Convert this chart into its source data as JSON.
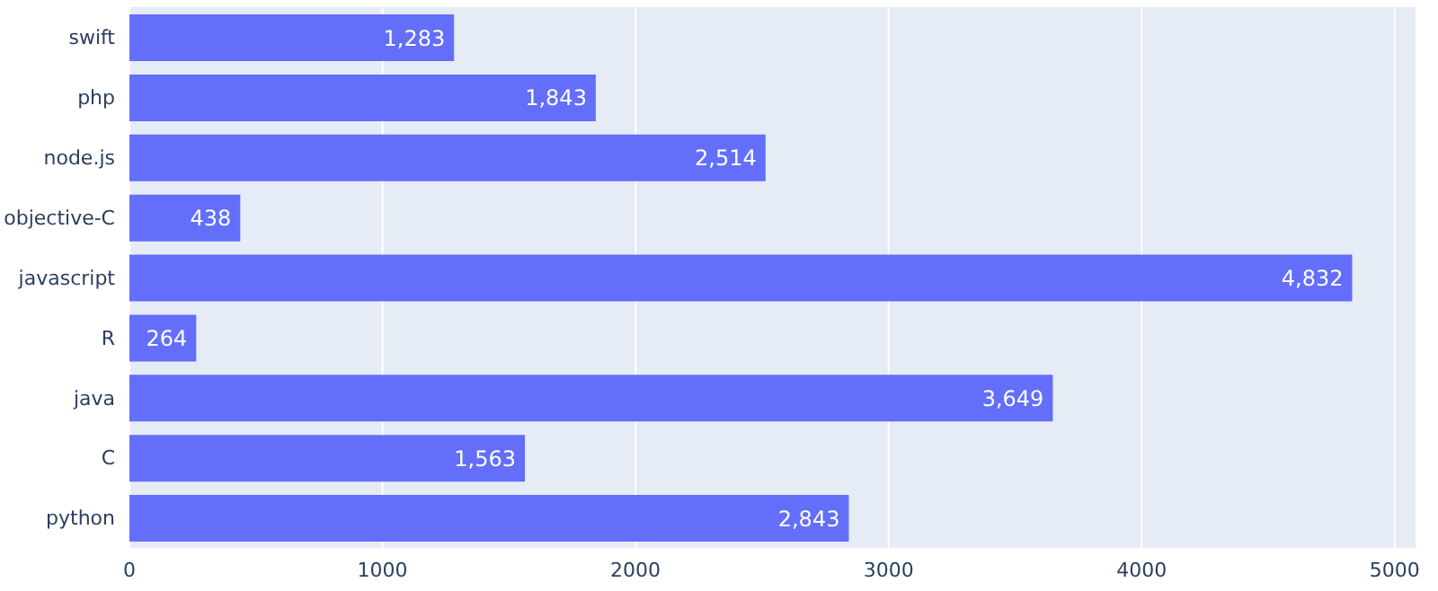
{
  "chart_data": {
    "type": "bar",
    "orientation": "horizontal",
    "categories": [
      "swift",
      "php",
      "node.js",
      "objective-C",
      "javascript",
      "R",
      "java",
      "C",
      "python"
    ],
    "values": [
      1283,
      1843,
      2514,
      438,
      4832,
      264,
      3649,
      1563,
      2843
    ],
    "value_labels": [
      "1,283",
      "1,843",
      "2,514",
      "438",
      "4,832",
      "264",
      "3,649",
      "1,563",
      "2,843"
    ],
    "color": "#636efa",
    "xlim": [
      0,
      5086
    ],
    "xticks": [
      0,
      1000,
      2000,
      3000,
      4000,
      5000
    ],
    "grid": "x",
    "legend": false
  }
}
